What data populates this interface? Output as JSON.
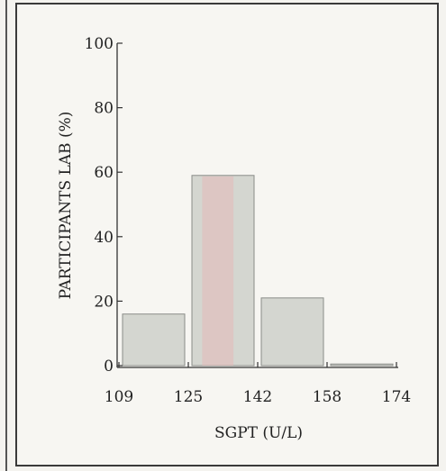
{
  "chart_data": {
    "type": "bar",
    "title": "",
    "xlabel": "SGPT (U/L)",
    "ylabel": "PARTICIPANTS LAB (%)",
    "x_ticks": [
      "109",
      "125",
      "142",
      "158",
      "174"
    ],
    "y_ticks": [
      "0",
      "20",
      "40",
      "60",
      "80",
      "100"
    ],
    "ylim": [
      0,
      100
    ],
    "bins": [
      {
        "from": "109",
        "to": "125",
        "value": 16
      },
      {
        "from": "125",
        "to": "142",
        "value": 59
      },
      {
        "from": "142",
        "to": "158",
        "value": 21
      },
      {
        "from": "158",
        "to": "174",
        "value": 0.5
      }
    ],
    "bar_color": "#d4d6d0",
    "highlight_color": "#e8b4b4",
    "grid": false,
    "legend": "none"
  }
}
